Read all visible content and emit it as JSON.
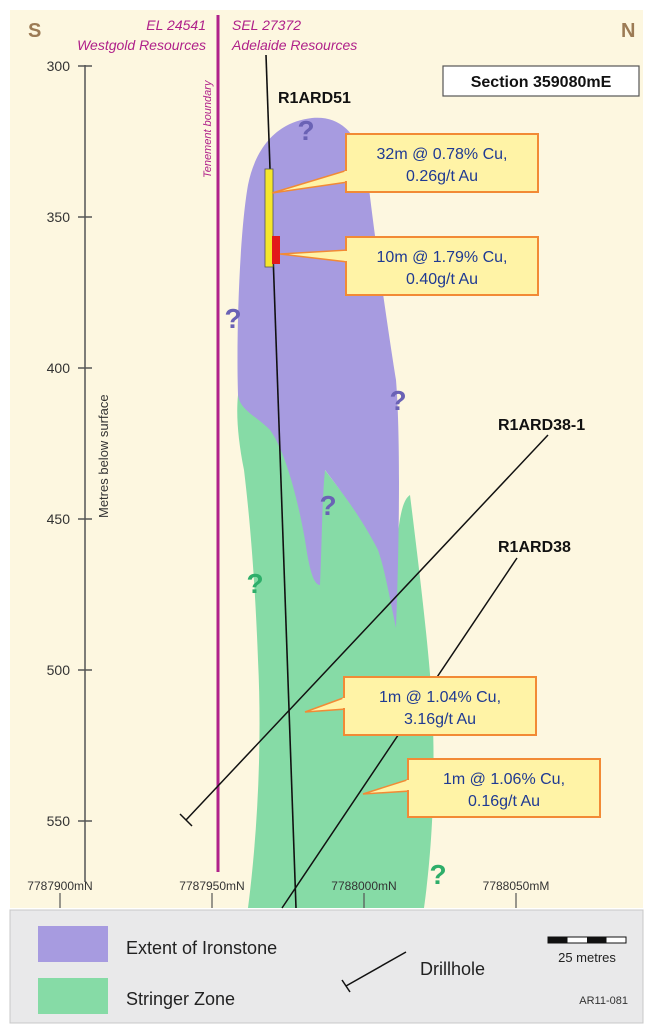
{
  "compass": {
    "south": "S",
    "north": "N"
  },
  "tenements": {
    "left": {
      "id": "EL 24541",
      "holder": "Westgold Resources"
    },
    "right": {
      "id": "SEL 27372",
      "holder": "Adelaide Resources"
    },
    "boundary_label": "Tenement boundary"
  },
  "section_label": "Section 359080mE",
  "y_axis": {
    "label": "Metres below surface",
    "ticks": [
      "300",
      "350",
      "400",
      "450",
      "500",
      "550"
    ]
  },
  "x_axis": {
    "ticks": [
      "7787900mN",
      "7787950mN",
      "7788000mN",
      "7788050mM"
    ]
  },
  "drillholes": [
    {
      "name": "R1ARD51"
    },
    {
      "name": "R1ARD38-1"
    },
    {
      "name": "R1ARD38"
    }
  ],
  "intercepts": [
    {
      "line1": "32m @ 0.78% Cu,",
      "line2": "0.26g/t Au"
    },
    {
      "line1": "10m @ 1.79% Cu,",
      "line2": "0.40g/t Au"
    },
    {
      "line1": "1m @ 1.04% Cu,",
      "line2": "3.16g/t Au"
    },
    {
      "line1": "1m @ 1.06% Cu,",
      "line2": "0.16g/t Au"
    }
  ],
  "uncertainty_mark": "?",
  "legend": {
    "ironstone": "Extent of Ironstone",
    "stringer": "Stringer Zone",
    "drillhole": "Drillhole",
    "scale": "25 metres",
    "ref": "AR11-081"
  },
  "colors": {
    "background": "#fdf7e0",
    "ironstone": "#a79be0",
    "stringer": "#86dba6",
    "boundary": "#b0218a",
    "callout_fill": "#fff3a6",
    "callout_border": "#f28a35",
    "callout_text": "#1f3a93",
    "question_blue": "#6a62b5",
    "question_green": "#2eae6a"
  }
}
